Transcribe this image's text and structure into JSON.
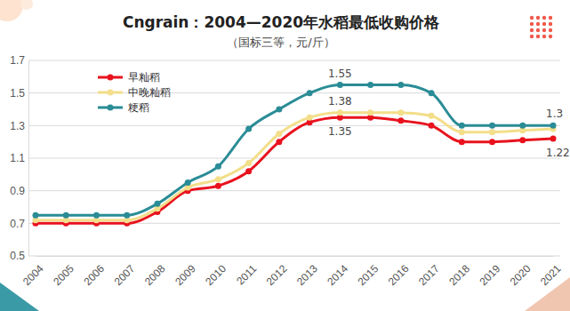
{
  "chart_data": {
    "type": "line",
    "title": "Cngrain：2004—2020年水稻最低收购价格",
    "subtitle": "（国标三等，元/斤）",
    "categories": [
      "2004",
      "2005",
      "2006",
      "2007",
      "2008",
      "2009",
      "2010",
      "2011",
      "2012",
      "2013",
      "2014",
      "2015",
      "2016",
      "2017",
      "2018",
      "2019",
      "2020",
      "2021"
    ],
    "series": [
      {
        "name": "早籼稻",
        "color": "#e8121e",
        "marker": "circle",
        "values": [
          0.7,
          0.7,
          0.7,
          0.7,
          0.77,
          0.9,
          0.93,
          1.02,
          1.2,
          1.32,
          1.35,
          1.35,
          1.33,
          1.3,
          1.2,
          1.2,
          1.21,
          1.22
        ],
        "value_labels": [
          null,
          null,
          null,
          null,
          null,
          null,
          null,
          null,
          null,
          null,
          "1.35",
          null,
          null,
          null,
          null,
          null,
          null,
          "1.22"
        ]
      },
      {
        "name": "中晚籼稻",
        "color": "#f3de8a",
        "marker": "circle",
        "values": [
          0.72,
          0.72,
          0.72,
          0.72,
          0.79,
          0.92,
          0.97,
          1.07,
          1.25,
          1.35,
          1.38,
          1.38,
          1.38,
          1.36,
          1.26,
          1.26,
          1.27,
          1.28
        ],
        "value_labels": [
          null,
          null,
          null,
          null,
          null,
          null,
          null,
          null,
          null,
          null,
          "1.38",
          null,
          null,
          null,
          null,
          null,
          null,
          null
        ]
      },
      {
        "name": "粳稻",
        "color": "#2a8c96",
        "marker": "circle",
        "values": [
          0.75,
          0.75,
          0.75,
          0.75,
          0.82,
          0.95,
          1.05,
          1.28,
          1.4,
          1.5,
          1.55,
          1.55,
          1.55,
          1.5,
          1.3,
          1.3,
          1.3,
          1.3
        ],
        "value_labels": [
          null,
          null,
          null,
          null,
          null,
          null,
          null,
          null,
          null,
          null,
          "1.55",
          null,
          null,
          null,
          null,
          null,
          null,
          "1.3"
        ]
      }
    ],
    "ylim": [
      0.5,
      1.7
    ],
    "yticks": [
      0.5,
      0.7,
      0.9,
      1.1,
      1.3,
      1.5,
      1.7
    ],
    "grid": true,
    "legend": "upper left"
  }
}
